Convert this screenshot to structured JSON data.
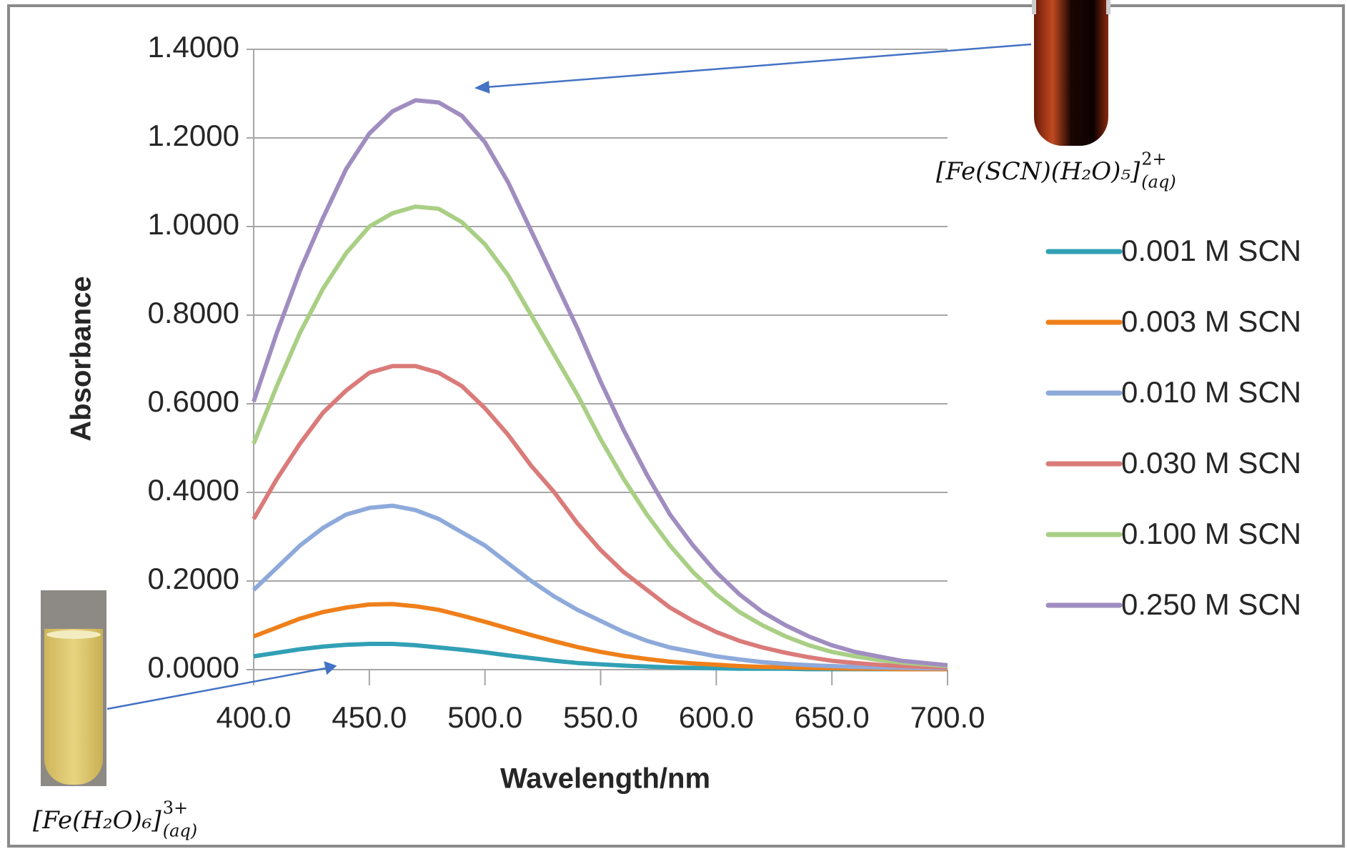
{
  "chart_data": {
    "type": "line",
    "x_label": "Wavelength/nm",
    "y_label": "Absorbance",
    "x": [
      400,
      410,
      420,
      430,
      440,
      450,
      460,
      470,
      480,
      490,
      500,
      510,
      520,
      530,
      540,
      550,
      560,
      570,
      580,
      590,
      600,
      610,
      620,
      630,
      640,
      650,
      660,
      670,
      680,
      690,
      700
    ],
    "series": [
      {
        "name": "0.001 M SCN",
        "color": "#31a0b5",
        "values": [
          0.03,
          0.038,
          0.046,
          0.052,
          0.056,
          0.058,
          0.058,
          0.055,
          0.05,
          0.045,
          0.039,
          0.032,
          0.026,
          0.02,
          0.015,
          0.012,
          0.009,
          0.007,
          0.005,
          0.004,
          0.003,
          0.002,
          0.002,
          0.002,
          0.001,
          0.001,
          0.001,
          0.001,
          0.001,
          0.001,
          0.001
        ]
      },
      {
        "name": "0.003 M SCN",
        "color": "#ef7f1a",
        "values": [
          0.075,
          0.095,
          0.115,
          0.13,
          0.14,
          0.147,
          0.148,
          0.143,
          0.135,
          0.122,
          0.108,
          0.093,
          0.078,
          0.064,
          0.051,
          0.04,
          0.031,
          0.024,
          0.018,
          0.014,
          0.011,
          0.008,
          0.006,
          0.005,
          0.004,
          0.003,
          0.002,
          0.002,
          0.001,
          0.001,
          0.001
        ]
      },
      {
        "name": "0.010 M SCN",
        "color": "#8eaadb",
        "values": [
          0.18,
          0.23,
          0.28,
          0.32,
          0.35,
          0.365,
          0.37,
          0.36,
          0.34,
          0.31,
          0.28,
          0.24,
          0.2,
          0.165,
          0.135,
          0.11,
          0.085,
          0.065,
          0.05,
          0.04,
          0.03,
          0.023,
          0.017,
          0.013,
          0.01,
          0.008,
          0.006,
          0.005,
          0.004,
          0.003,
          0.003
        ]
      },
      {
        "name": "0.030 M SCN",
        "color": "#da7b79",
        "values": [
          0.34,
          0.43,
          0.51,
          0.58,
          0.63,
          0.67,
          0.685,
          0.685,
          0.67,
          0.64,
          0.59,
          0.53,
          0.46,
          0.4,
          0.33,
          0.27,
          0.22,
          0.18,
          0.14,
          0.11,
          0.085,
          0.065,
          0.05,
          0.038,
          0.028,
          0.02,
          0.015,
          0.011,
          0.008,
          0.006,
          0.005
        ]
      },
      {
        "name": "0.100 M SCN",
        "color": "#a9cf85",
        "values": [
          0.51,
          0.64,
          0.76,
          0.86,
          0.94,
          1.0,
          1.03,
          1.045,
          1.04,
          1.01,
          0.96,
          0.89,
          0.8,
          0.71,
          0.62,
          0.52,
          0.43,
          0.35,
          0.28,
          0.22,
          0.17,
          0.13,
          0.1,
          0.075,
          0.055,
          0.04,
          0.03,
          0.022,
          0.016,
          0.012,
          0.008
        ]
      },
      {
        "name": "0.250 M SCN",
        "color": "#a08dc0",
        "values": [
          0.605,
          0.76,
          0.9,
          1.02,
          1.13,
          1.21,
          1.26,
          1.285,
          1.28,
          1.25,
          1.19,
          1.1,
          0.99,
          0.88,
          0.77,
          0.65,
          0.54,
          0.44,
          0.35,
          0.28,
          0.22,
          0.17,
          0.13,
          0.1,
          0.075,
          0.055,
          0.04,
          0.03,
          0.02,
          0.015,
          0.01
        ]
      }
    ],
    "xlim": [
      400,
      700
    ],
    "xticks": [
      {
        "value": 400,
        "label": "400.0"
      },
      {
        "value": 450,
        "label": "450.0"
      },
      {
        "value": 500,
        "label": "500.0"
      },
      {
        "value": 550,
        "label": "550.0"
      },
      {
        "value": 600,
        "label": "600.0"
      },
      {
        "value": 650,
        "label": "650.0"
      },
      {
        "value": 700,
        "label": "700.0"
      }
    ],
    "ylim": [
      0,
      1.4
    ],
    "yticks": [
      {
        "value": 0,
        "label": "0.0000"
      },
      {
        "value": 0.2,
        "label": "0.2000"
      },
      {
        "value": 0.4,
        "label": "0.4000"
      },
      {
        "value": 0.6,
        "label": "0.6000"
      },
      {
        "value": 0.8,
        "label": "0.8000"
      },
      {
        "value": 1.0,
        "label": "1.0000"
      },
      {
        "value": 1.2,
        "label": "1.2000"
      },
      {
        "value": 1.4,
        "label": "1.4000"
      }
    ],
    "grid": true,
    "legend": "right",
    "annotations": [
      {
        "text": "[Fe(SCN)(H₂O)₅]",
        "sup": "2+",
        "sub": "(aq)"
      },
      {
        "text": "[Fe(H₂O)₆]",
        "sup": "3+",
        "sub": "(aq)"
      }
    ]
  }
}
